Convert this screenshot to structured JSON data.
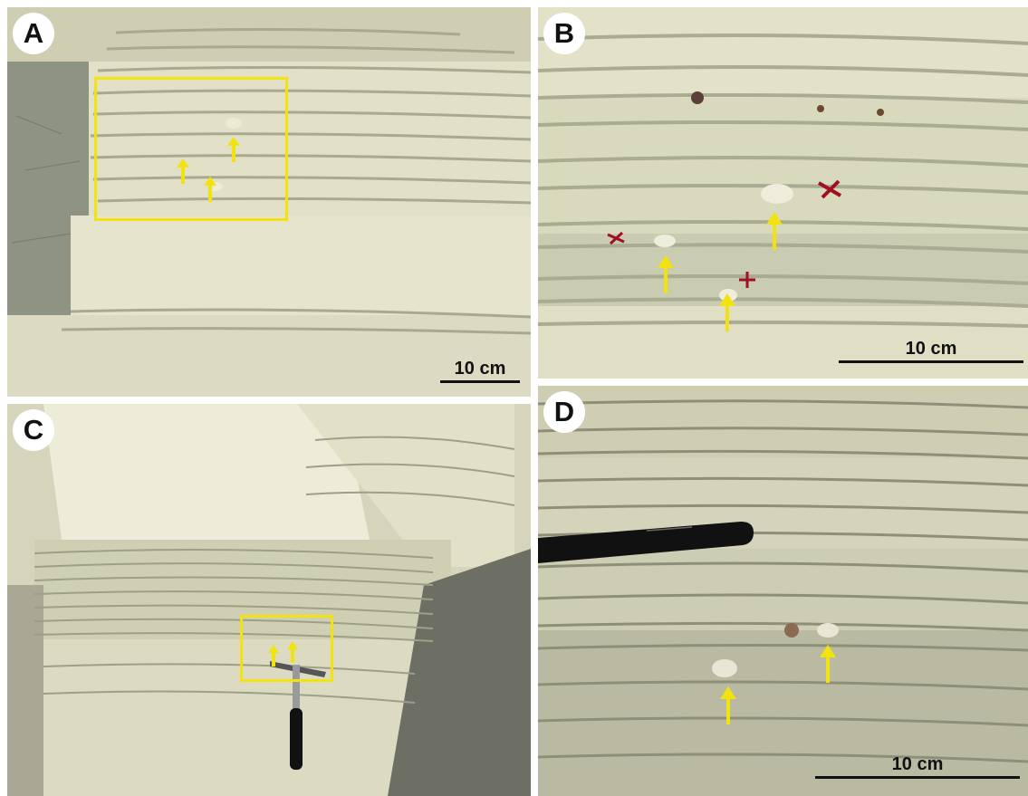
{
  "panels": [
    {
      "label": "A",
      "scale_label": "10 cm"
    },
    {
      "label": "B",
      "scale_label": "10 cm"
    },
    {
      "label": "C"
    },
    {
      "label": "D",
      "scale_label": "10 cm"
    }
  ],
  "colors": {
    "rock_light": "#e3e1c4",
    "rock_shadow": "#9a9b85",
    "highlight_yellow": "#f2e20f",
    "scale_black": "#111111",
    "mark_red": "#a01020"
  },
  "icons": [
    "arrow-up-icon",
    "rock-hammer-icon",
    "pen-icon",
    "red-cross-mark-icon"
  ]
}
